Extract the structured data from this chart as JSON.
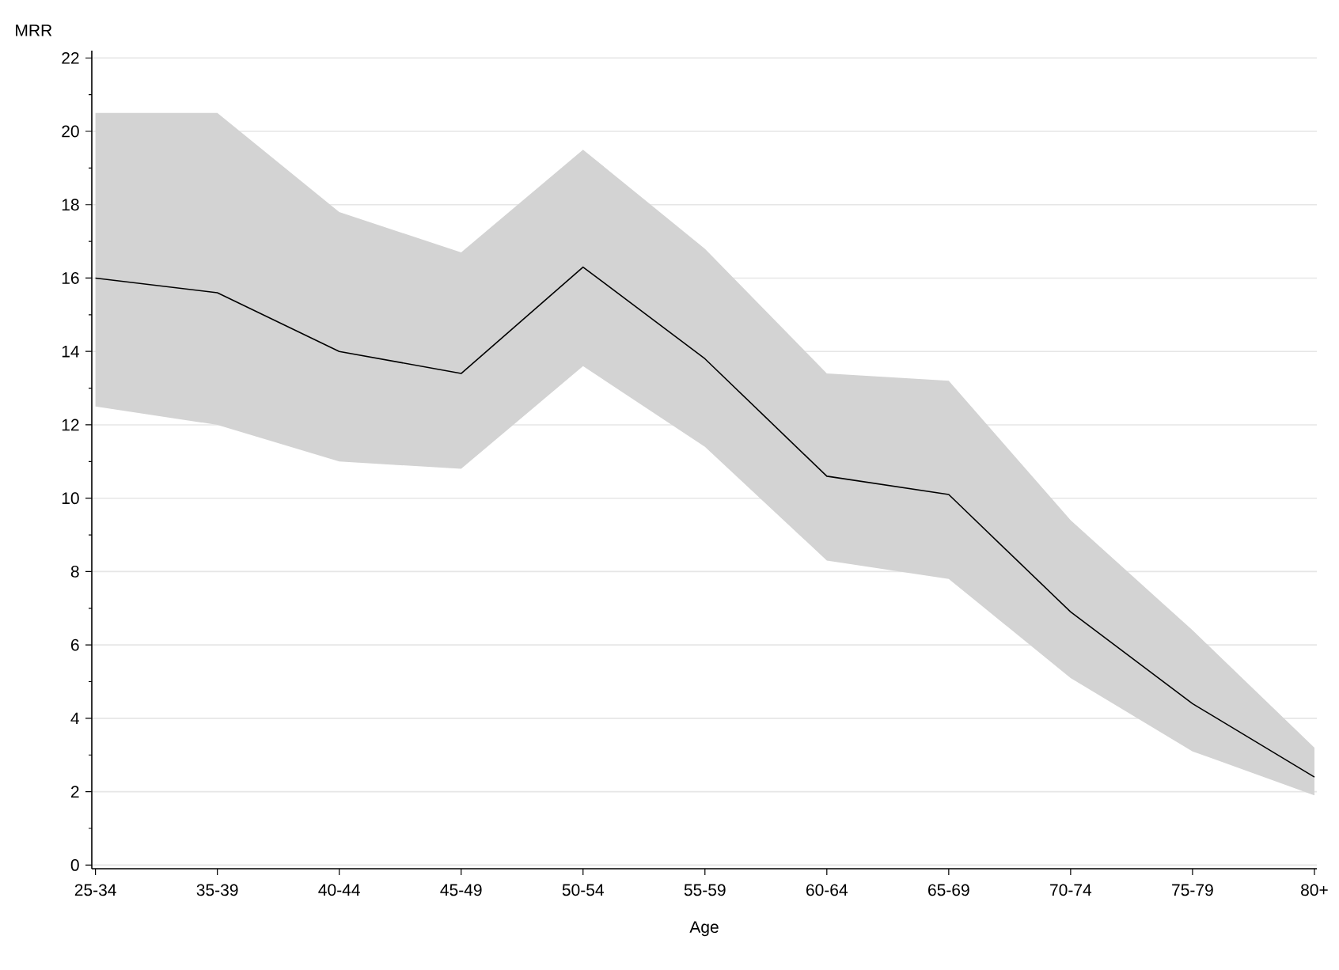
{
  "chart_data": {
    "type": "line",
    "xlabel": "Age",
    "ylabel": "MRR",
    "categories": [
      "25-34",
      "35-39",
      "40-44",
      "45-49",
      "50-54",
      "55-59",
      "60-64",
      "65-69",
      "70-74",
      "75-79",
      "80+"
    ],
    "series": [
      {
        "color": "#000000",
        "values": [
          16.0,
          15.6,
          14.0,
          13.4,
          16.3,
          13.8,
          10.6,
          10.1,
          6.9,
          4.4,
          2.4
        ],
        "lower": [
          12.5,
          12.0,
          11.0,
          10.8,
          13.6,
          11.4,
          8.3,
          7.8,
          5.1,
          3.1,
          1.9
        ],
        "upper": [
          20.5,
          20.5,
          17.8,
          16.7,
          19.5,
          16.8,
          13.4,
          13.2,
          9.4,
          6.4,
          3.2
        ]
      }
    ],
    "ylim": [
      -0.1,
      22.2
    ],
    "yticks": [
      0,
      2,
      4,
      6,
      8,
      10,
      12,
      14,
      16,
      18,
      20,
      22
    ],
    "grid": "y",
    "marker": "none",
    "line_style": "solid"
  }
}
